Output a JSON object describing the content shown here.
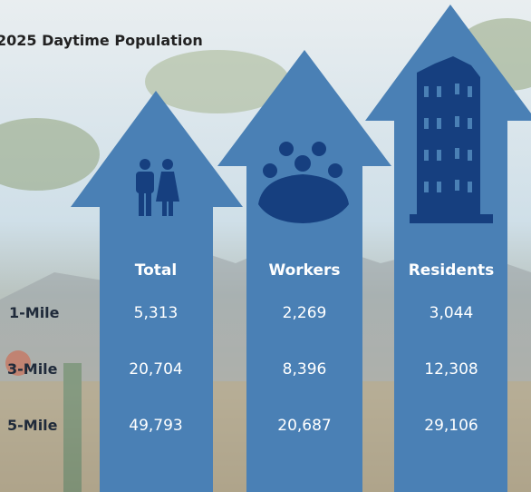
{
  "title": "2025 Daytime Population",
  "table": {
    "columns": [
      "Total",
      "Workers",
      "Residents"
    ],
    "rows": [
      {
        "label": "1-Mile",
        "values": [
          "5,313",
          "2,269",
          "3,044"
        ]
      },
      {
        "label": "3-Mile",
        "values": [
          "20,704",
          "8,396",
          "12,308"
        ]
      },
      {
        "label": "5-Mile",
        "values": [
          "49,793",
          "20,687",
          "29,106"
        ]
      }
    ]
  }
}
